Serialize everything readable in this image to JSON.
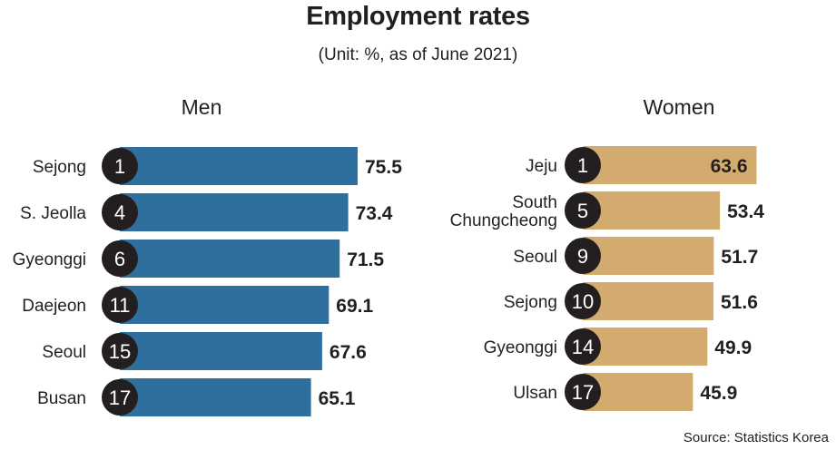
{
  "header": {
    "title": "Employment rates",
    "subtitle": "(Unit: %, as of June 2021)"
  },
  "footer": {
    "source": "Source: Statistics Korea"
  },
  "colors": {
    "men": "#2e6f9e",
    "women": "#d3ab6e",
    "badge": "#231f20"
  },
  "chart_data": [
    {
      "type": "bar",
      "orientation": "horizontal",
      "panel_title": "Men",
      "categories": [
        "Sejong",
        "S. Jeolla",
        "Gyeonggi",
        "Daejeon",
        "Seoul",
        "Busan"
      ],
      "ranks": [
        "1",
        "4",
        "6",
        "11",
        "15",
        "17"
      ],
      "values": [
        75.5,
        73.4,
        71.5,
        69.1,
        67.6,
        65.1
      ],
      "value_labels": [
        "75.5",
        "73.4",
        "71.5",
        "69.1",
        "67.6",
        "65.1"
      ]
    },
    {
      "type": "bar",
      "orientation": "horizontal",
      "panel_title": "Women",
      "categories": [
        "Jeju",
        "South Chungcheong",
        "Seoul",
        "Sejong",
        "Gyeonggi",
        "Ulsan"
      ],
      "category_lines": [
        [
          "Jeju"
        ],
        [
          "South",
          "Chungcheong"
        ],
        [
          "Seoul"
        ],
        [
          "Sejong"
        ],
        [
          "Gyeonggi"
        ],
        [
          "Ulsan"
        ]
      ],
      "ranks": [
        "1",
        "5",
        "9",
        "10",
        "14",
        "17"
      ],
      "values": [
        63.6,
        53.4,
        51.7,
        51.6,
        49.9,
        45.9
      ],
      "value_labels": [
        "63.6",
        "53.4",
        "51.7",
        "51.6",
        "49.9",
        "45.9"
      ],
      "label_inside_first": true
    }
  ]
}
